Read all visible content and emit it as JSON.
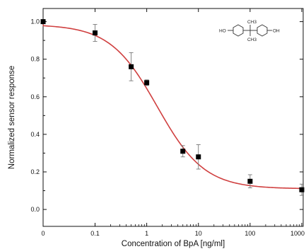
{
  "chart_data": {
    "type": "scatter",
    "xlabel": "Concentration of BpA [ng/ml]",
    "ylabel": "Normalized sensor response",
    "x_scale": "log",
    "x_ticks": [
      {
        "value": 0,
        "label": "0"
      },
      {
        "value": 0.1,
        "label": "0.1"
      },
      {
        "value": 1,
        "label": "1"
      },
      {
        "value": 10,
        "label": "10"
      },
      {
        "value": 100,
        "label": "100"
      },
      {
        "value": 1000,
        "label": "1000"
      }
    ],
    "y_ticks": [
      0.0,
      0.2,
      0.4,
      0.6,
      0.8,
      1.0
    ],
    "y_tick_labels": [
      "0.0",
      "0.2",
      "0.4",
      "0.6",
      "0.8",
      "1.0"
    ],
    "ylim": [
      -0.09,
      1.07
    ],
    "grid": false,
    "points": [
      {
        "x": 0,
        "y": 1.0,
        "err": 0.0
      },
      {
        "x": 0.1,
        "y": 0.94,
        "err": 0.045
      },
      {
        "x": 0.5,
        "y": 0.76,
        "err": 0.075
      },
      {
        "x": 1,
        "y": 0.675,
        "err": 0.015
      },
      {
        "x": 5,
        "y": 0.31,
        "err": 0.03
      },
      {
        "x": 10,
        "y": 0.28,
        "err": 0.065
      },
      {
        "x": 100,
        "y": 0.15,
        "err": 0.035
      },
      {
        "x": 1000,
        "y": 0.105,
        "err": 0.03
      }
    ],
    "fit_curve": {
      "type": "logistic",
      "top": 0.985,
      "bottom": 0.11,
      "ec50": 1.6,
      "hill": 0.95,
      "color": "#d04040"
    },
    "marker_color": "#000000",
    "structure_labels": {
      "left": "HO",
      "right": "OH",
      "top": "CH3",
      "bottom": "CH3"
    }
  }
}
